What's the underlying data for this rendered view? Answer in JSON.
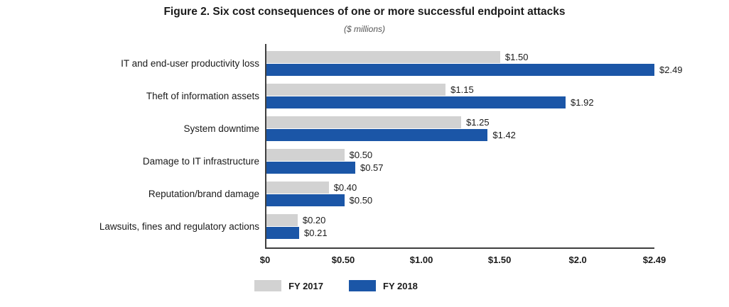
{
  "chart_data": {
    "type": "bar",
    "orientation": "horizontal",
    "title": "Figure 2. Six cost consequences of one or more successful endpoint attacks",
    "subtitle": "($ millions)",
    "categories": [
      "IT and end-user productivity loss",
      "Theft of information assets",
      "System downtime",
      "Damage to IT infrastructure",
      "Reputation/brand damage",
      "Lawsuits, fines and regulatory actions"
    ],
    "series": [
      {
        "name": "FY 2017",
        "color": "#d2d2d2",
        "values": [
          1.5,
          1.15,
          1.25,
          0.5,
          0.4,
          0.2
        ],
        "labels": [
          "$1.50",
          "$1.15",
          "$1.25",
          "$0.50",
          "$0.40",
          "$0.20"
        ]
      },
      {
        "name": "FY 2018",
        "color": "#1b56a7",
        "values": [
          2.49,
          1.92,
          1.42,
          0.57,
          0.5,
          0.21
        ],
        "labels": [
          "$2.49",
          "$1.92",
          "$1.42",
          "$0.57",
          "$0.50",
          "$0.21"
        ]
      }
    ],
    "xlim": [
      0,
      2.49
    ],
    "xticks": [
      {
        "value": 0,
        "label": "$0"
      },
      {
        "value": 0.5,
        "label": "$0.50"
      },
      {
        "value": 1.0,
        "label": "$1.00"
      },
      {
        "value": 1.5,
        "label": "$1.50"
      },
      {
        "value": 2.0,
        "label": "$2.0"
      },
      {
        "value": 2.49,
        "label": "$2.49"
      }
    ],
    "grid": false,
    "legend_position": "bottom"
  }
}
